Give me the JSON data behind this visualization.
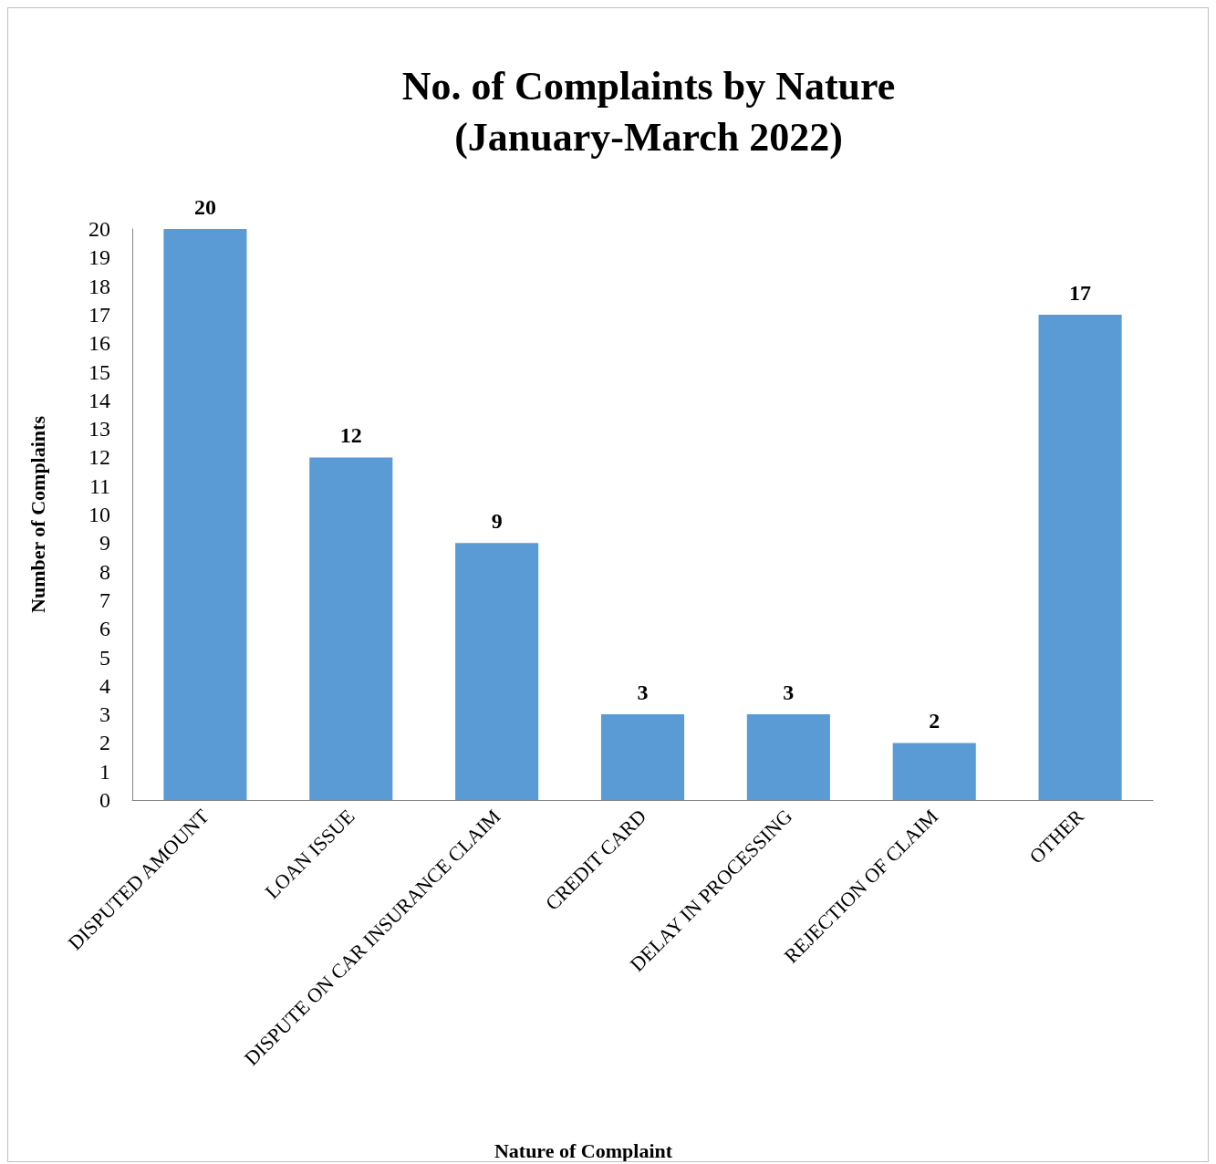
{
  "chart_data": {
    "type": "bar",
    "title": "No. of Complaints by Nature\n(January-March 2022)",
    "xlabel": "Nature of Complaint",
    "ylabel": "Number of Complaints",
    "categories": [
      "DISPUTED AMOUNT",
      "LOAN ISSUE",
      "DISPUTE ON CAR INSURANCE CLAIM",
      "CREDIT CARD",
      "DELAY IN PROCESSING",
      "REJECTION OF CLAIM",
      "OTHER"
    ],
    "values": [
      20,
      12,
      9,
      3,
      3,
      2,
      17
    ],
    "color": "#5b9bd5",
    "ylim": [
      0,
      20
    ],
    "yticks": [
      0,
      1,
      2,
      3,
      4,
      5,
      6,
      7,
      8,
      9,
      10,
      11,
      12,
      13,
      14,
      15,
      16,
      17,
      18,
      19,
      20
    ],
    "grid": false,
    "data_labels": true
  }
}
